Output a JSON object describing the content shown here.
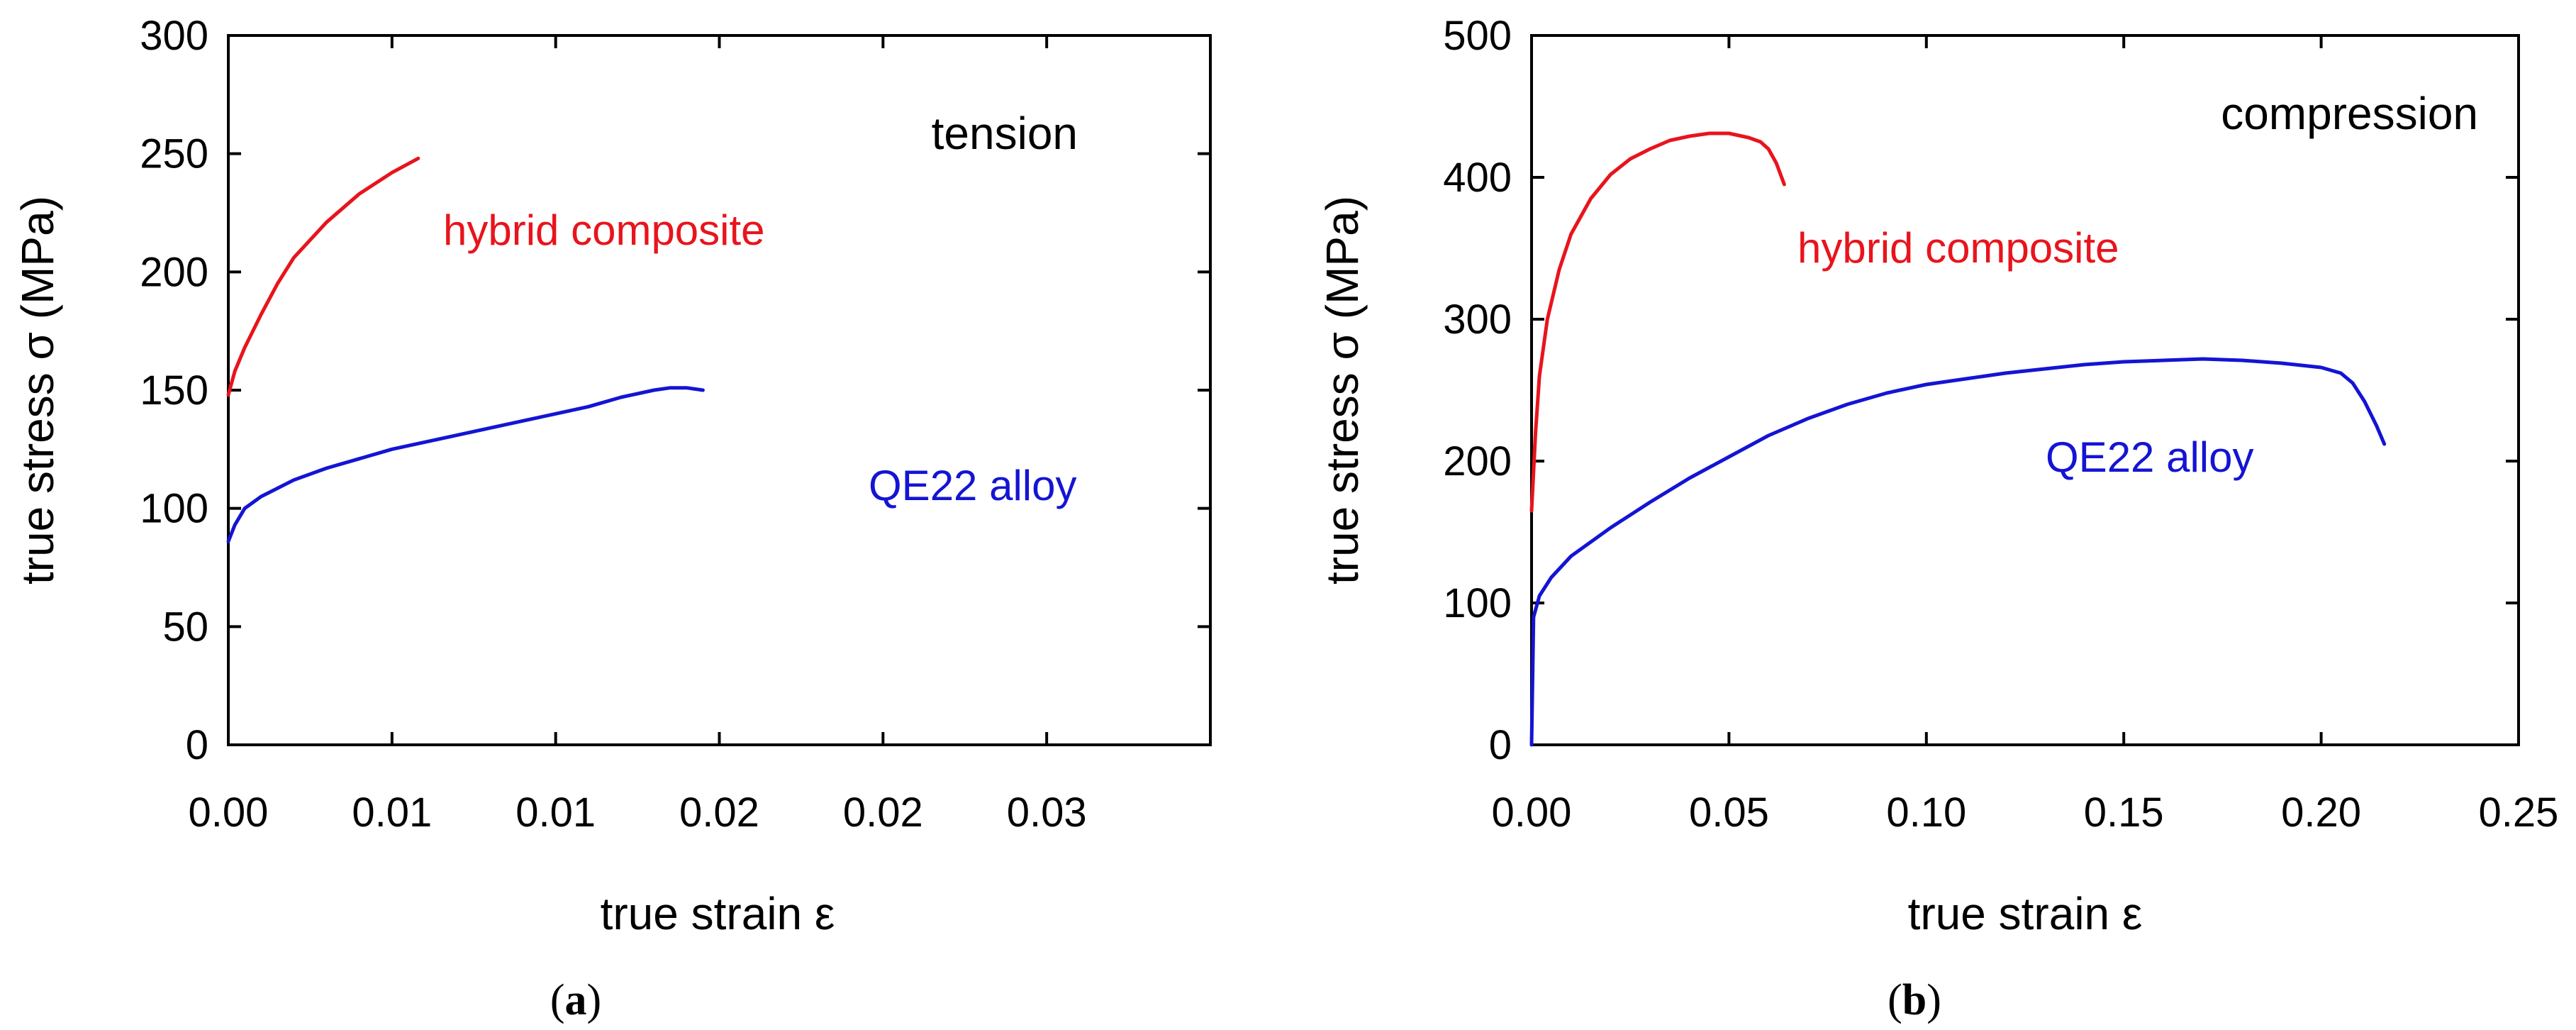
{
  "chart_data": [
    {
      "type": "line",
      "panel_label": "a",
      "annotation": "tension",
      "xlabel": "true strain ε",
      "ylabel": "true stress σ (MPa)",
      "xlim": [
        0,
        0.03
      ],
      "ylim": [
        0,
        300
      ],
      "x_ticks": [
        0,
        0.005,
        0.01,
        0.015,
        0.02,
        0.025
      ],
      "x_tick_labels": [
        "0.00",
        "0.01",
        "0.01",
        "0.02",
        "0.02",
        "0.03"
      ],
      "y_ticks": [
        0,
        50,
        100,
        150,
        200,
        250,
        300
      ],
      "y_tick_labels": [
        "0",
        "50",
        "100",
        "150",
        "200",
        "250",
        "300"
      ],
      "grid": false,
      "series": [
        {
          "name": "hybrid composite",
          "color": "#e8141c",
          "x": [
            0,
            0.0002,
            0.0005,
            0.001,
            0.0015,
            0.002,
            0.003,
            0.004,
            0.005,
            0.0058
          ],
          "y": [
            148,
            158,
            168,
            182,
            195,
            206,
            221,
            233,
            242,
            248
          ]
        },
        {
          "name": "QE22 alloy",
          "color": "#1414d4",
          "x": [
            0,
            0.0002,
            0.0005,
            0.001,
            0.002,
            0.003,
            0.004,
            0.005,
            0.006,
            0.007,
            0.008,
            0.009,
            0.01,
            0.011,
            0.012,
            0.013,
            0.0135,
            0.014,
            0.0145
          ],
          "y": [
            86,
            93,
            100,
            105,
            112,
            117,
            121,
            125,
            128,
            131,
            134,
            137,
            140,
            143,
            147,
            150,
            151,
            151,
            150
          ]
        }
      ]
    },
    {
      "type": "line",
      "panel_label": "b",
      "annotation": "compression",
      "xlabel": "true strain ε",
      "ylabel": "true stress σ (MPa)",
      "xlim": [
        0,
        0.25
      ],
      "ylim": [
        0,
        500
      ],
      "x_ticks": [
        0,
        0.05,
        0.1,
        0.15,
        0.2,
        0.25
      ],
      "x_tick_labels": [
        "0.00",
        "0.05",
        "0.10",
        "0.15",
        "0.20",
        "0.25"
      ],
      "y_ticks": [
        0,
        100,
        200,
        300,
        400,
        500
      ],
      "y_tick_labels": [
        "0",
        "100",
        "200",
        "300",
        "400",
        "500"
      ],
      "grid": false,
      "series": [
        {
          "name": "hybrid composite",
          "color": "#e8141c",
          "x": [
            0,
            0.001,
            0.002,
            0.004,
            0.007,
            0.01,
            0.015,
            0.02,
            0.025,
            0.03,
            0.035,
            0.04,
            0.045,
            0.05,
            0.055,
            0.058,
            0.06,
            0.062,
            0.064
          ],
          "y": [
            165,
            220,
            260,
            300,
            335,
            360,
            385,
            402,
            413,
            420,
            426,
            429,
            431,
            431,
            428,
            425,
            420,
            410,
            395
          ]
        },
        {
          "name": "QE22 alloy",
          "color": "#1414d4",
          "x": [
            0,
            0.0005,
            0.002,
            0.005,
            0.01,
            0.02,
            0.03,
            0.04,
            0.05,
            0.06,
            0.07,
            0.08,
            0.09,
            0.1,
            0.11,
            0.12,
            0.13,
            0.14,
            0.15,
            0.16,
            0.17,
            0.18,
            0.19,
            0.2,
            0.205,
            0.208,
            0.211,
            0.214,
            0.216
          ],
          "y": [
            0,
            90,
            105,
            118,
            133,
            153,
            171,
            188,
            203,
            218,
            230,
            240,
            248,
            254,
            258,
            262,
            265,
            268,
            270,
            271,
            272,
            271,
            269,
            266,
            262,
            255,
            242,
            225,
            212
          ]
        }
      ]
    }
  ],
  "captions": {
    "a": {
      "open": "(",
      "letter": "a",
      "close": ")"
    },
    "b": {
      "open": "(",
      "letter": "b",
      "close": ")"
    }
  }
}
